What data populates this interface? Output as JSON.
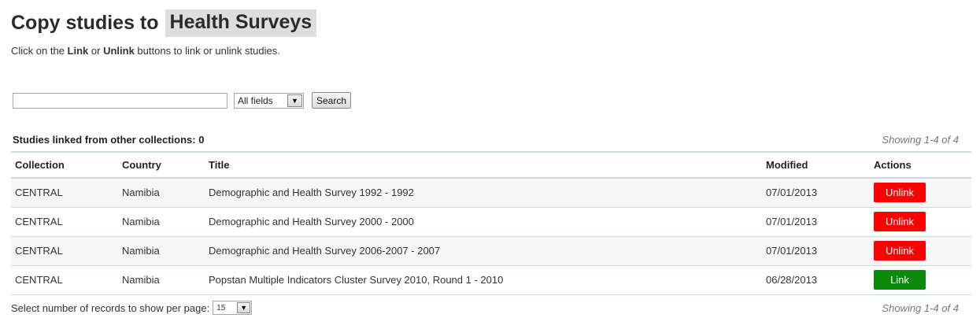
{
  "header": {
    "title_prefix": "Copy studies to",
    "collection_name": "Health Surveys"
  },
  "instructions": {
    "part1": "Click on the ",
    "link_word": "Link",
    "part2": " or ",
    "unlink_word": "Unlink",
    "part3": " buttons to link or unlink studies."
  },
  "search": {
    "value": "",
    "placeholder": "",
    "field_selected": "All fields",
    "button_label": "Search"
  },
  "summary": {
    "linked_label": "Studies linked from other collections: 0",
    "showing": "Showing 1-4 of 4"
  },
  "table": {
    "columns": [
      "Collection",
      "Country",
      "Title",
      "Modified",
      "Actions"
    ],
    "rows": [
      {
        "collection": "CENTRAL",
        "country": "Namibia",
        "title": "Demographic and Health Survey 1992 - 1992",
        "modified": "07/01/2013",
        "action": "Unlink"
      },
      {
        "collection": "CENTRAL",
        "country": "Namibia",
        "title": "Demographic and Health Survey 2000 - 2000",
        "modified": "07/01/2013",
        "action": "Unlink"
      },
      {
        "collection": "CENTRAL",
        "country": "Namibia",
        "title": "Demographic and Health Survey 2006-2007 - 2007",
        "modified": "07/01/2013",
        "action": "Unlink"
      },
      {
        "collection": "CENTRAL",
        "country": "Namibia",
        "title": "Popstan Multiple Indicators Cluster Survey 2010, Round 1 - 2010",
        "modified": "06/28/2013",
        "action": "Link"
      }
    ]
  },
  "footer": {
    "per_page_label": "Select number of records to show per page:",
    "per_page_value": "15",
    "showing": "Showing 1-4 of 4"
  },
  "colors": {
    "unlink": "#ff0000",
    "link": "#0a8a0a",
    "title_highlight": "#dedede",
    "table_border": "#c8dcd8"
  },
  "icons": {
    "dropdown": "chevron-down-icon"
  }
}
